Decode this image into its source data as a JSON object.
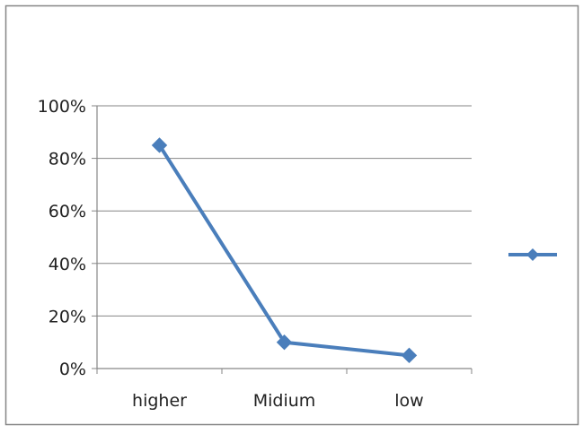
{
  "chart_data": {
    "type": "line",
    "categories": [
      "higher",
      "Midium",
      "low"
    ],
    "series": [
      {
        "values": [
          85,
          10,
          5
        ],
        "color": "#4a7ebb",
        "marker": "diamond"
      }
    ],
    "y_tick_labels": [
      "0%",
      "20%",
      "40%",
      "60%",
      "80%",
      "100%"
    ],
    "ylim": [
      0,
      100
    ],
    "y_unit": "percent",
    "grid": true,
    "legend": {
      "position": "right",
      "shows_label": false
    }
  }
}
